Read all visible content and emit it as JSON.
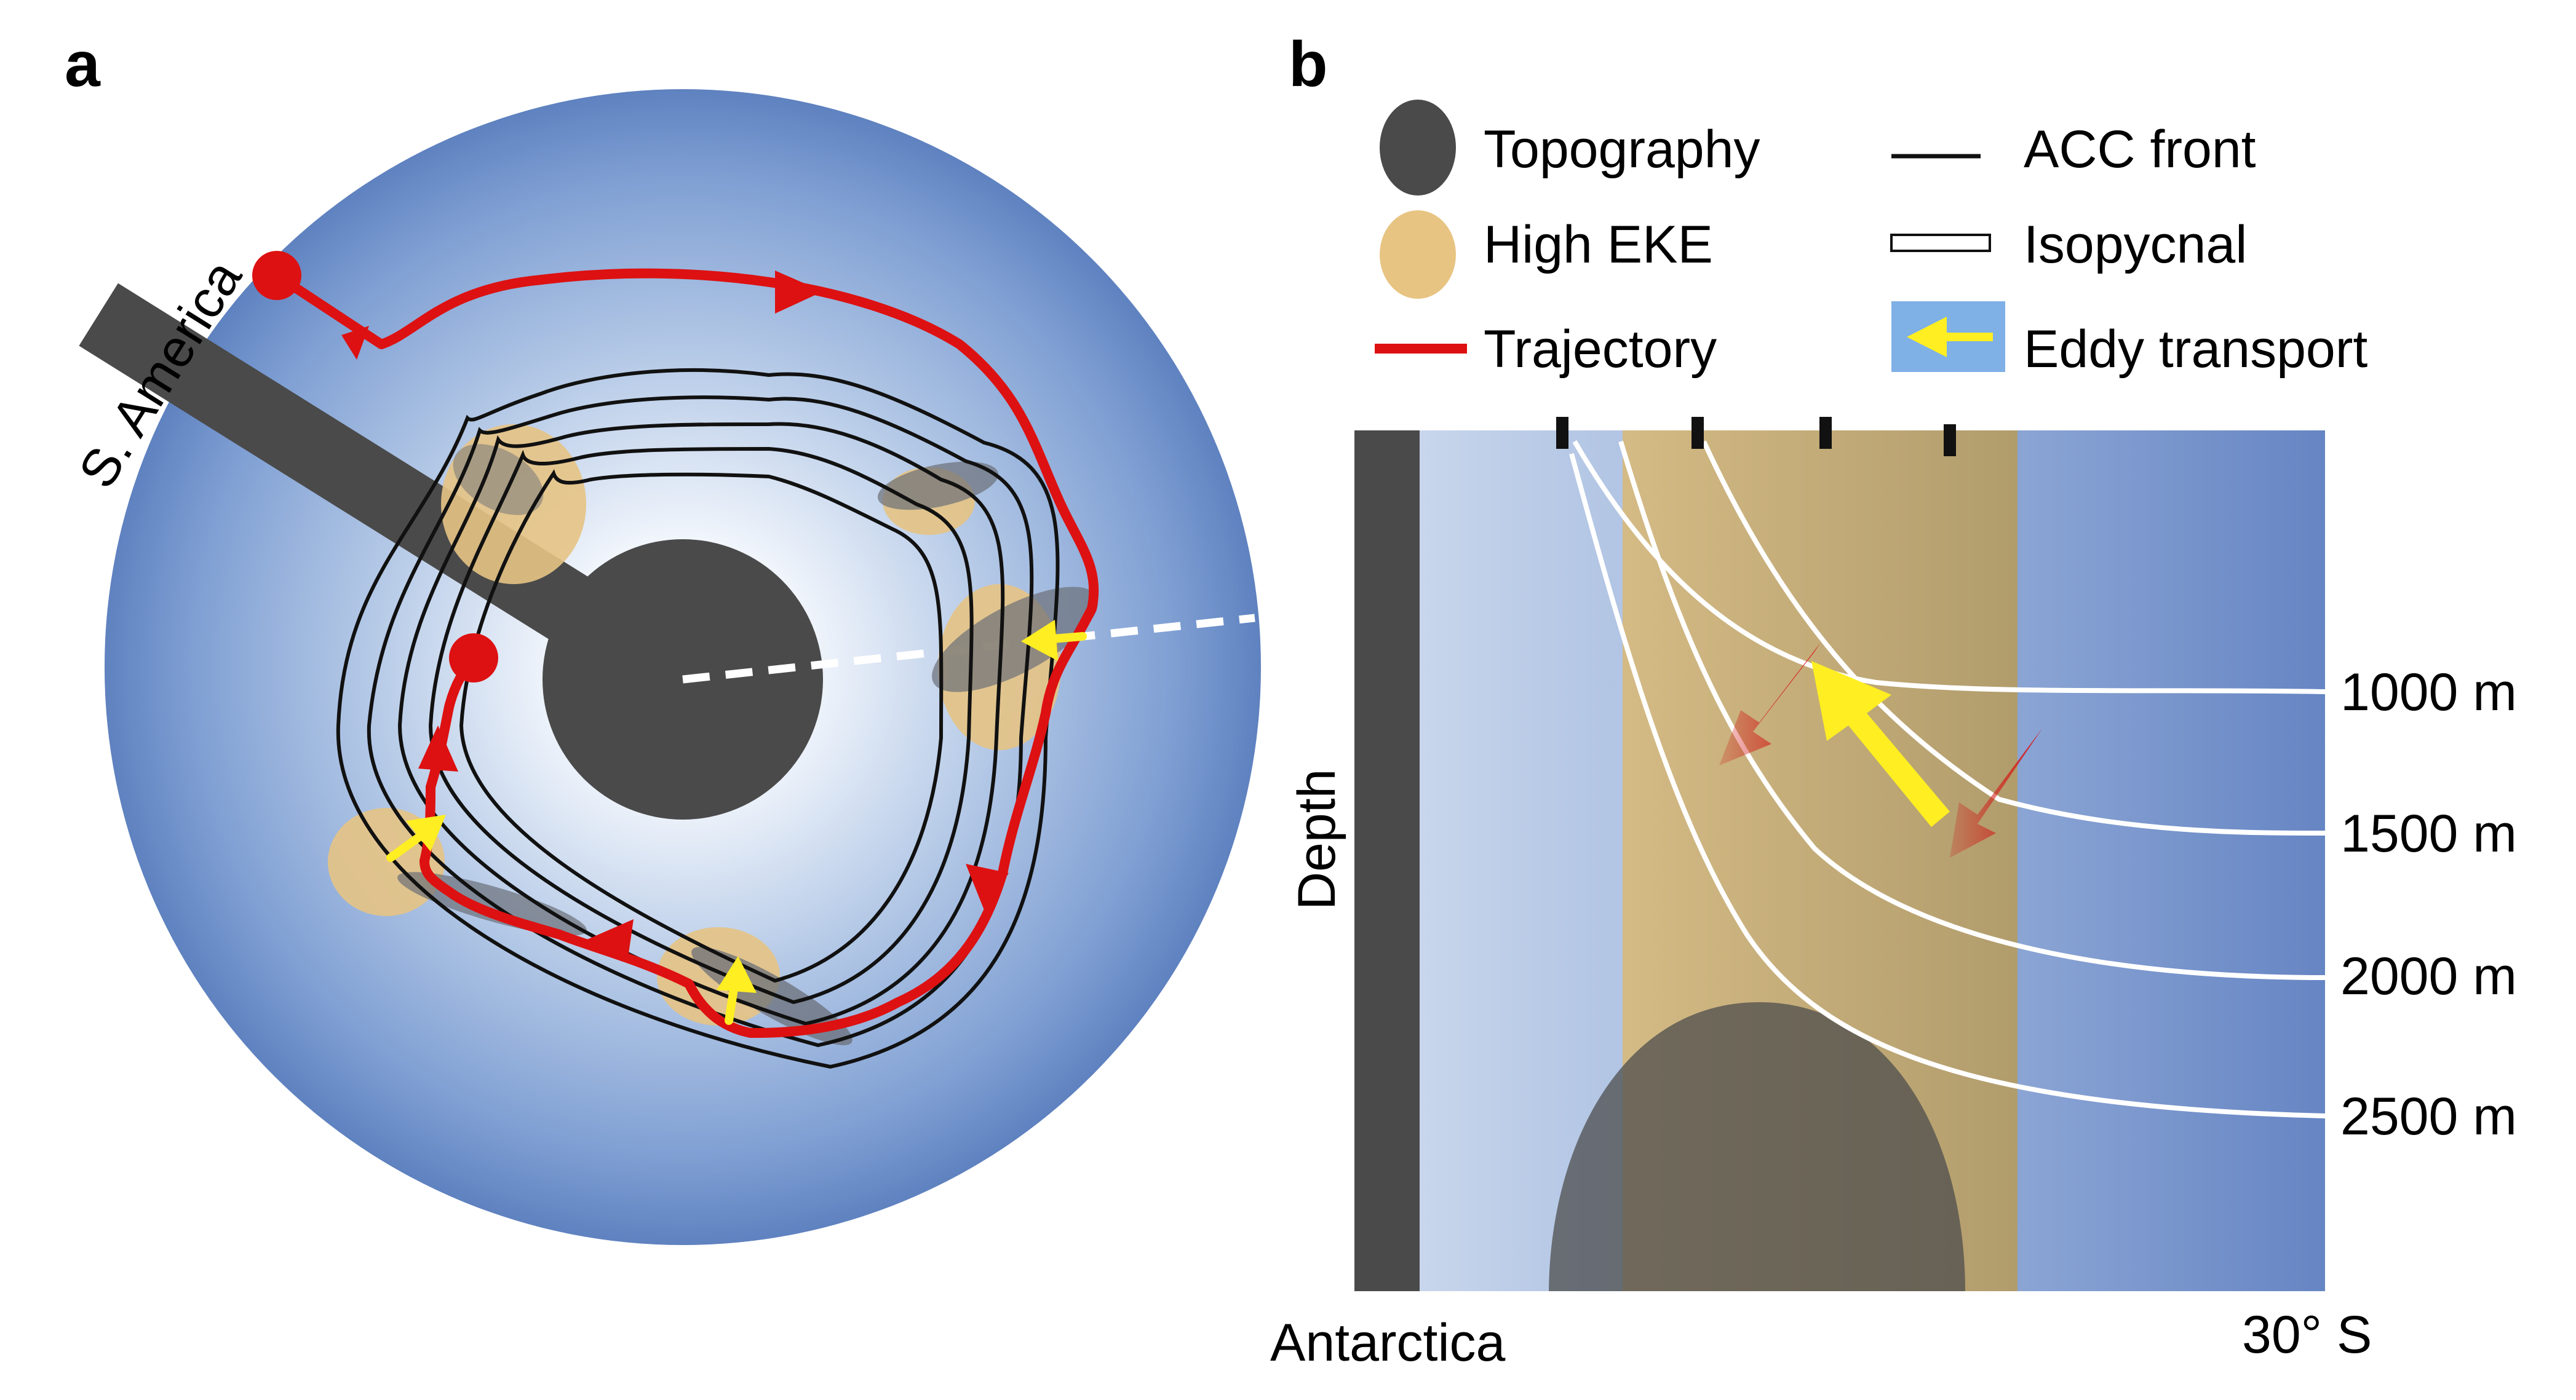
{
  "panel_a": {
    "letter": "a",
    "continent_label": "S. America"
  },
  "panel_b": {
    "letter": "b",
    "legend": {
      "topography": "Topography",
      "high_eke": "High EKE",
      "trajectory": "Trajectory",
      "acc_front": "ACC front",
      "isopycnal": "Isopycnal",
      "eddy_transport": "Eddy transport"
    },
    "isopycnal_depths": [
      "1000 m",
      "1500 m",
      "2000 m",
      "2500 m"
    ],
    "y_axis_label": "Depth",
    "x_left_label": "Antarctica",
    "x_right_label": "30° S"
  },
  "colors": {
    "trajectory": "#dd1111",
    "eddy_transport": "#ffee22",
    "topography": "#4a4a4a",
    "high_eke": "#e8c483",
    "ocean_outer": "#5f82c0",
    "ocean_inner": "#ffffff",
    "acc_front": "#111111",
    "isopycnal": "#ffffff"
  }
}
